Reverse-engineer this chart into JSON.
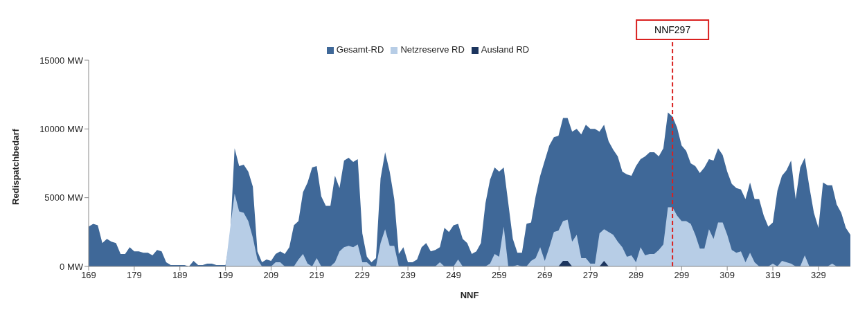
{
  "chart_data": {
    "type": "area",
    "xlabel": "NNF",
    "ylabel": "Redispatchbedarf",
    "legend": "top",
    "grid": false,
    "x": [
      169,
      170,
      171,
      172,
      173,
      174,
      175,
      176,
      177,
      178,
      179,
      180,
      181,
      182,
      183,
      184,
      185,
      186,
      187,
      188,
      189,
      190,
      191,
      192,
      193,
      194,
      195,
      196,
      197,
      198,
      199,
      200,
      201,
      202,
      203,
      204,
      205,
      206,
      207,
      208,
      209,
      210,
      211,
      212,
      213,
      214,
      215,
      216,
      217,
      218,
      219,
      220,
      221,
      222,
      223,
      224,
      225,
      226,
      227,
      228,
      229,
      230,
      231,
      232,
      233,
      234,
      235,
      236,
      237,
      238,
      239,
      240,
      241,
      242,
      243,
      244,
      245,
      246,
      247,
      248,
      249,
      250,
      251,
      252,
      253,
      254,
      255,
      256,
      257,
      258,
      259,
      260,
      261,
      262,
      263,
      264,
      265,
      266,
      267,
      268,
      269,
      270,
      271,
      272,
      273,
      274,
      275,
      276,
      277,
      278,
      279,
      280,
      281,
      282,
      283,
      284,
      285,
      286,
      287,
      288,
      289,
      290,
      291,
      292,
      293,
      294,
      295,
      296,
      297,
      298,
      299,
      300,
      301,
      302,
      303,
      304,
      305,
      306,
      307,
      308,
      309,
      310,
      311,
      312,
      313,
      314,
      315,
      316,
      317,
      318,
      319,
      320,
      321,
      322,
      323,
      324,
      325,
      326,
      327,
      328,
      329,
      330,
      331,
      332,
      333,
      334,
      335,
      336
    ],
    "xlim": [
      169,
      336
    ],
    "xticks": [
      169,
      179,
      189,
      199,
      209,
      219,
      229,
      239,
      249,
      259,
      269,
      279,
      289,
      299,
      309,
      319,
      329
    ],
    "ylim": [
      0,
      15000
    ],
    "yticks": [
      {
        "value": 0,
        "label": "0 MW"
      },
      {
        "value": 5000,
        "label": "5000 MW"
      },
      {
        "value": 10000,
        "label": "10000 MW"
      },
      {
        "value": 15000,
        "label": "15000 MW"
      }
    ],
    "ref_lines": [
      {
        "axis": "x",
        "value": 297,
        "label": "NNF297",
        "color": "#d9201f",
        "line_style": "dashed"
      }
    ],
    "series": [
      {
        "name": "Gesamt-RD",
        "color": "#3f6898",
        "values": [
          2900,
          3100,
          3000,
          1700,
          2000,
          1800,
          1700,
          900,
          900,
          1400,
          1100,
          1100,
          1000,
          1000,
          800,
          1200,
          1100,
          300,
          100,
          100,
          100,
          100,
          0,
          400,
          100,
          100,
          200,
          200,
          100,
          100,
          100,
          2000,
          8600,
          7300,
          7400,
          6900,
          5800,
          1100,
          300,
          500,
          400,
          900,
          1100,
          900,
          1400,
          3000,
          3300,
          5400,
          6100,
          7200,
          7300,
          5100,
          4400,
          4400,
          6600,
          5700,
          7700,
          7900,
          7600,
          7800,
          2400,
          700,
          300,
          600,
          6400,
          8300,
          6900,
          4900,
          900,
          1400,
          300,
          300,
          500,
          1400,
          1700,
          1100,
          1200,
          1400,
          2800,
          2500,
          3000,
          3100,
          2000,
          1700,
          900,
          1100,
          1700,
          4600,
          6300,
          7200,
          6900,
          7200,
          4600,
          2000,
          1000,
          1000,
          3100,
          3200,
          5100,
          6600,
          7700,
          8800,
          9400,
          9500,
          10800,
          10800,
          9800,
          10000,
          9600,
          10300,
          10000,
          10000,
          9800,
          10300,
          9100,
          8500,
          8000,
          6900,
          6700,
          6600,
          7300,
          7800,
          8000,
          8300,
          8300,
          8000,
          8600,
          11200,
          10900,
          10100,
          8800,
          8400,
          7500,
          7300,
          6800,
          7200,
          7800,
          7700,
          8600,
          8100,
          6900,
          6000,
          5700,
          5600,
          4900,
          6100,
          4900,
          4900,
          3700,
          2900,
          3200,
          5500,
          6600,
          7000,
          7700,
          4900,
          7200,
          7900,
          5800,
          3900,
          2800,
          6100,
          5900,
          5900,
          4500,
          3900,
          2800,
          2300
        ]
      },
      {
        "name": "Netzreserve RD",
        "color": "#b7cde6",
        "values": [
          0,
          0,
          0,
          0,
          0,
          0,
          0,
          0,
          0,
          0,
          0,
          0,
          0,
          0,
          0,
          0,
          0,
          0,
          0,
          0,
          0,
          0,
          0,
          0,
          0,
          0,
          0,
          0,
          0,
          0,
          0,
          2700,
          5300,
          4000,
          3900,
          3300,
          2100,
          500,
          0,
          0,
          0,
          300,
          300,
          0,
          0,
          0,
          500,
          900,
          200,
          0,
          600,
          0,
          0,
          0,
          300,
          1100,
          1400,
          1500,
          1400,
          1600,
          300,
          300,
          0,
          0,
          1700,
          2700,
          1500,
          1500,
          0,
          0,
          0,
          0,
          0,
          0,
          0,
          0,
          0,
          300,
          0,
          0,
          0,
          500,
          0,
          0,
          0,
          0,
          0,
          0,
          200,
          900,
          700,
          2900,
          0,
          0,
          100,
          0,
          0,
          400,
          600,
          1400,
          400,
          1400,
          2500,
          2600,
          3300,
          3400,
          1800,
          2300,
          600,
          600,
          200,
          200,
          2400,
          2700,
          2500,
          2300,
          1800,
          1400,
          700,
          800,
          300,
          1400,
          800,
          900,
          900,
          1200,
          1600,
          4300,
          4300,
          3700,
          3300,
          3300,
          3100,
          2300,
          1300,
          1300,
          2700,
          2000,
          3200,
          3200,
          2300,
          1200,
          1000,
          1100,
          300,
          1000,
          300,
          0,
          0,
          0,
          200,
          0,
          400,
          300,
          200,
          0,
          0,
          800,
          0,
          0,
          0,
          0,
          0,
          200,
          0,
          0,
          0,
          0
        ]
      },
      {
        "name": "Ausland RD",
        "color": "#1c355e",
        "values": [
          0,
          0,
          0,
          0,
          0,
          0,
          0,
          0,
          0,
          0,
          0,
          0,
          0,
          0,
          0,
          0,
          0,
          0,
          0,
          0,
          0,
          0,
          0,
          0,
          0,
          0,
          0,
          0,
          0,
          0,
          0,
          0,
          0,
          0,
          0,
          0,
          0,
          0,
          0,
          0,
          0,
          0,
          0,
          0,
          0,
          0,
          0,
          0,
          0,
          0,
          0,
          0,
          0,
          0,
          0,
          0,
          0,
          0,
          0,
          0,
          0,
          0,
          0,
          0,
          0,
          0,
          0,
          0,
          0,
          0,
          0,
          0,
          0,
          0,
          0,
          0,
          0,
          0,
          0,
          0,
          0,
          0,
          0,
          0,
          0,
          0,
          0,
          0,
          0,
          0,
          0,
          0,
          0,
          0,
          0,
          0,
          0,
          0,
          0,
          0,
          0,
          0,
          0,
          0,
          400,
          400,
          0,
          0,
          0,
          0,
          0,
          0,
          0,
          400,
          0,
          0,
          0,
          0,
          0,
          0,
          0,
          0,
          0,
          0,
          0,
          0,
          0,
          0,
          0,
          0,
          0,
          0,
          0,
          0,
          0,
          0,
          0,
          0,
          0,
          0,
          0,
          0,
          0,
          0,
          0,
          0,
          0,
          0,
          0,
          0,
          0,
          0,
          0,
          0,
          0,
          0,
          0,
          0,
          0,
          0,
          0,
          0,
          0,
          0,
          0,
          0,
          0,
          0
        ]
      }
    ]
  }
}
